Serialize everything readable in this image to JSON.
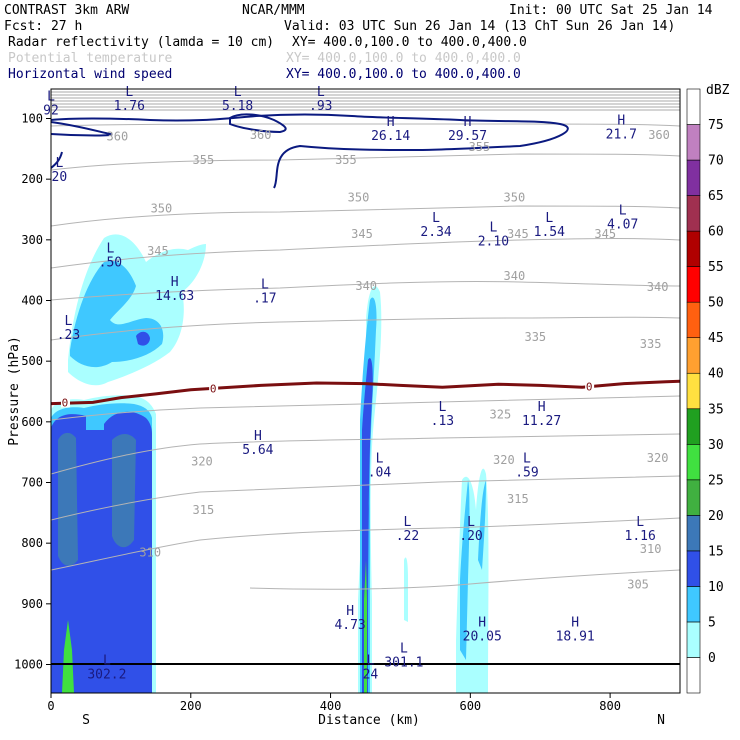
{
  "header": {
    "model": "CONTRAST  3km ARW",
    "org": "NCAR/MMM",
    "init": "Init: 00 UTC Sat 25 Jan 14",
    "fcst": "Fcst:   27 h",
    "valid": "Valid: 03 UTC Sun 26 Jan 14 (13 ChT Sun 26 Jan 14)",
    "field1": "Radar reflectivity (lamda = 10 cm)",
    "field1_xy": "XY= 400.0,100.0 to 400.0,400.0",
    "field2": "Potential temperature",
    "field2_xy": "XY= 400.0,100.0 to 400.0,400.0",
    "field3": "Horizontal wind speed",
    "field3_xy": "XY= 400.0,100.0 to 400.0,400.0"
  },
  "chart_data": {
    "type": "cross-section",
    "xlabel": "Distance (km)",
    "ylabel": "Pressure (hPa)",
    "xlim": [
      0,
      900
    ],
    "ylim": [
      1040,
      60
    ],
    "xticks": [
      0,
      200,
      400,
      600,
      800
    ],
    "yticks": [
      100,
      200,
      300,
      400,
      500,
      600,
      700,
      800,
      900,
      1000
    ],
    "left_end": "S",
    "right_end": "N",
    "colorbar": {
      "unit": "dBZ",
      "levels": [
        0,
        5,
        10,
        15,
        20,
        25,
        30,
        35,
        40,
        45,
        50,
        55,
        60,
        65,
        70,
        75
      ],
      "colors": [
        "#ffffff",
        "#aaffff",
        "#3fc8ff",
        "#3050e8",
        "#3c78b8",
        "#40b040",
        "#40e040",
        "#20a020",
        "#ffe040",
        "#ffa030",
        "#ff6010",
        "#ff0000",
        "#b00000",
        "#a03050",
        "#8030a0",
        "#c080c0",
        "#ffffff"
      ]
    },
    "theta_contours": [
      {
        "value": 305,
        "label": "305",
        "x": 840,
        "p": 868
      },
      {
        "value": 310,
        "label": "310",
        "x": 142,
        "p": 815
      },
      {
        "value": 310,
        "label": "310",
        "x": 858,
        "p": 810
      },
      {
        "value": 315,
        "label": "315",
        "x": 218,
        "p": 745
      },
      {
        "value": 315,
        "label": "315",
        "x": 668,
        "p": 727
      },
      {
        "value": 320,
        "label": "320",
        "x": 216,
        "p": 665
      },
      {
        "value": 320,
        "label": "320",
        "x": 648,
        "p": 663
      },
      {
        "value": 320,
        "label": "320",
        "x": 868,
        "p": 660
      },
      {
        "value": 325,
        "label": "325",
        "x": 643,
        "p": 588
      },
      {
        "value": 335,
        "label": "335",
        "x": 693,
        "p": 460
      },
      {
        "value": 335,
        "label": "335",
        "x": 858,
        "p": 472
      },
      {
        "value": 340,
        "label": "340",
        "x": 451,
        "p": 376
      },
      {
        "value": 340,
        "label": "340",
        "x": 663,
        "p": 360
      },
      {
        "value": 340,
        "label": "340",
        "x": 868,
        "p": 378
      },
      {
        "value": 345,
        "label": "345",
        "x": 153,
        "p": 318
      },
      {
        "value": 345,
        "label": "345",
        "x": 445,
        "p": 290
      },
      {
        "value": 345,
        "label": "345",
        "x": 668,
        "p": 290
      },
      {
        "value": 345,
        "label": "345",
        "x": 793,
        "p": 290
      },
      {
        "value": 350,
        "label": "350",
        "x": 158,
        "p": 248
      },
      {
        "value": 350,
        "label": "350",
        "x": 440,
        "p": 230
      },
      {
        "value": 350,
        "label": "350",
        "x": 663,
        "p": 230
      },
      {
        "value": 355,
        "label": "355",
        "x": 218,
        "p": 168
      },
      {
        "value": 355,
        "label": "355",
        "x": 422,
        "p": 168
      },
      {
        "value": 355,
        "label": "355",
        "x": 613,
        "p": 147
      },
      {
        "value": 360,
        "label": "360",
        "x": 95,
        "p": 130
      },
      {
        "value": 360,
        "label": "360",
        "x": 300,
        "p": 127
      },
      {
        "value": 360,
        "label": "360",
        "x": 870,
        "p": 127
      }
    ],
    "zero_contour": {
      "label": "0",
      "points": [
        [
          0,
          570
        ],
        [
          60,
          568
        ],
        [
          100,
          560
        ],
        [
          150,
          554
        ],
        [
          200,
          547
        ],
        [
          300,
          540
        ],
        [
          380,
          536
        ],
        [
          450,
          537
        ],
        [
          500,
          540
        ],
        [
          560,
          543
        ],
        [
          640,
          538
        ],
        [
          700,
          540
        ],
        [
          760,
          543
        ],
        [
          820,
          537
        ],
        [
          880,
          534
        ],
        [
          900,
          533
        ]
      ],
      "label_positions": [
        [
          20,
          568
        ],
        [
          232,
          545
        ],
        [
          770,
          542
        ]
      ]
    },
    "extrema_labels": [
      {
        "type": "L",
        "value": "1.76",
        "x": 112,
        "p": 63
      },
      {
        "type": "L",
        "value": "5.18",
        "x": 267,
        "p": 63
      },
      {
        "type": "L",
        "value": ".93",
        "x": 386,
        "p": 63
      },
      {
        "type": "H",
        "value": "26.14",
        "x": 486,
        "p": 112
      },
      {
        "type": "H",
        "value": "29.57",
        "x": 596,
        "p": 112
      },
      {
        "type": "H",
        "value": "21.7",
        "x": 816,
        "p": 110
      },
      {
        "type": "L",
        "value": "2.34",
        "x": 551,
        "p": 271
      },
      {
        "type": "L",
        "value": "2.10",
        "x": 633,
        "p": 286
      },
      {
        "type": "L",
        "value": "1.54",
        "x": 713,
        "p": 271
      },
      {
        "type": "L",
        "value": "4.07",
        "x": 818,
        "p": 258
      },
      {
        "type": "L",
        "value": ".50",
        "x": 85,
        "p": 321
      },
      {
        "type": "H",
        "value": "14.63",
        "x": 177,
        "p": 376
      },
      {
        "type": "L",
        "value": ".17",
        "x": 306,
        "p": 380
      },
      {
        "type": "L",
        "value": ".23",
        "x": 25,
        "p": 440
      },
      {
        "type": "L",
        "value": ".13",
        "x": 560,
        "p": 582
      },
      {
        "type": "H",
        "value": "11.27",
        "x": 702,
        "p": 582
      },
      {
        "type": "H",
        "value": "5.64",
        "x": 296,
        "p": 630
      },
      {
        "type": "L",
        "value": ".04",
        "x": 470,
        "p": 667
      },
      {
        "type": "L",
        "value": ".59",
        "x": 681,
        "p": 667
      },
      {
        "type": "L",
        "value": ".22",
        "x": 510,
        "p": 772
      },
      {
        "type": "L",
        "value": ".20",
        "x": 601,
        "p": 772
      },
      {
        "type": "L",
        "value": "1.16",
        "x": 843,
        "p": 772
      },
      {
        "type": "H",
        "value": "4.73",
        "x": 428,
        "p": 918
      },
      {
        "type": "H",
        "value": "20.05",
        "x": 617,
        "p": 937
      },
      {
        "type": "H",
        "value": "18.91",
        "x": 750,
        "p": 937
      },
      {
        "type": "L",
        "value": "302.2",
        "x": 80,
        "p": 1000
      },
      {
        "type": "L",
        "value": "301.1",
        "x": 505,
        "p": 980
      },
      {
        "type": "L",
        "value": "24",
        "x": 457,
        "p": 1000
      },
      {
        "type": "L",
        "value": "92",
        "x": 0,
        "p": 70
      },
      {
        "type": "L",
        "value": "20",
        "x": 12,
        "p": 180
      }
    ]
  }
}
